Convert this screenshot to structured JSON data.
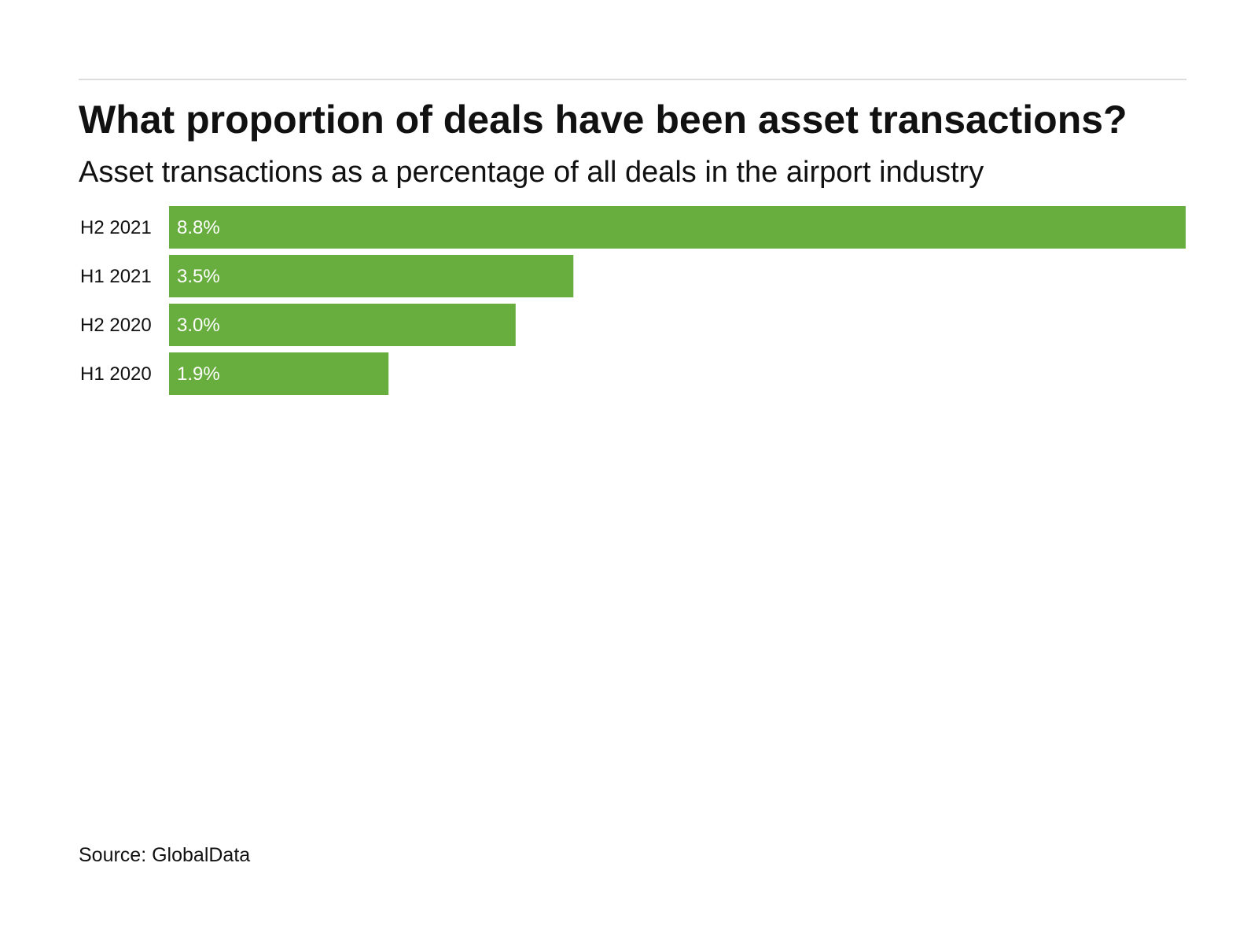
{
  "title": "What proportion of deals have been asset transactions?",
  "subtitle": "Asset transactions as a percentage of all deals in the airport industry",
  "source": "Source: GlobalData",
  "bar_color": "#68ae3e",
  "chart_data": {
    "type": "bar",
    "orientation": "horizontal",
    "categories": [
      "H2 2021",
      "H1 2021",
      "H2 2020",
      "H1 2020"
    ],
    "values": [
      8.8,
      3.5,
      3.0,
      1.9
    ],
    "value_labels": [
      "8.8%",
      "3.5%",
      "3.0%",
      "1.9%"
    ],
    "title": "What proportion of deals have been asset transactions?",
    "subtitle": "Asset transactions as a percentage of all deals in the airport industry",
    "xlabel": "",
    "ylabel": "",
    "xlim": [
      0,
      8.8
    ],
    "grid": false,
    "legend": "none"
  }
}
